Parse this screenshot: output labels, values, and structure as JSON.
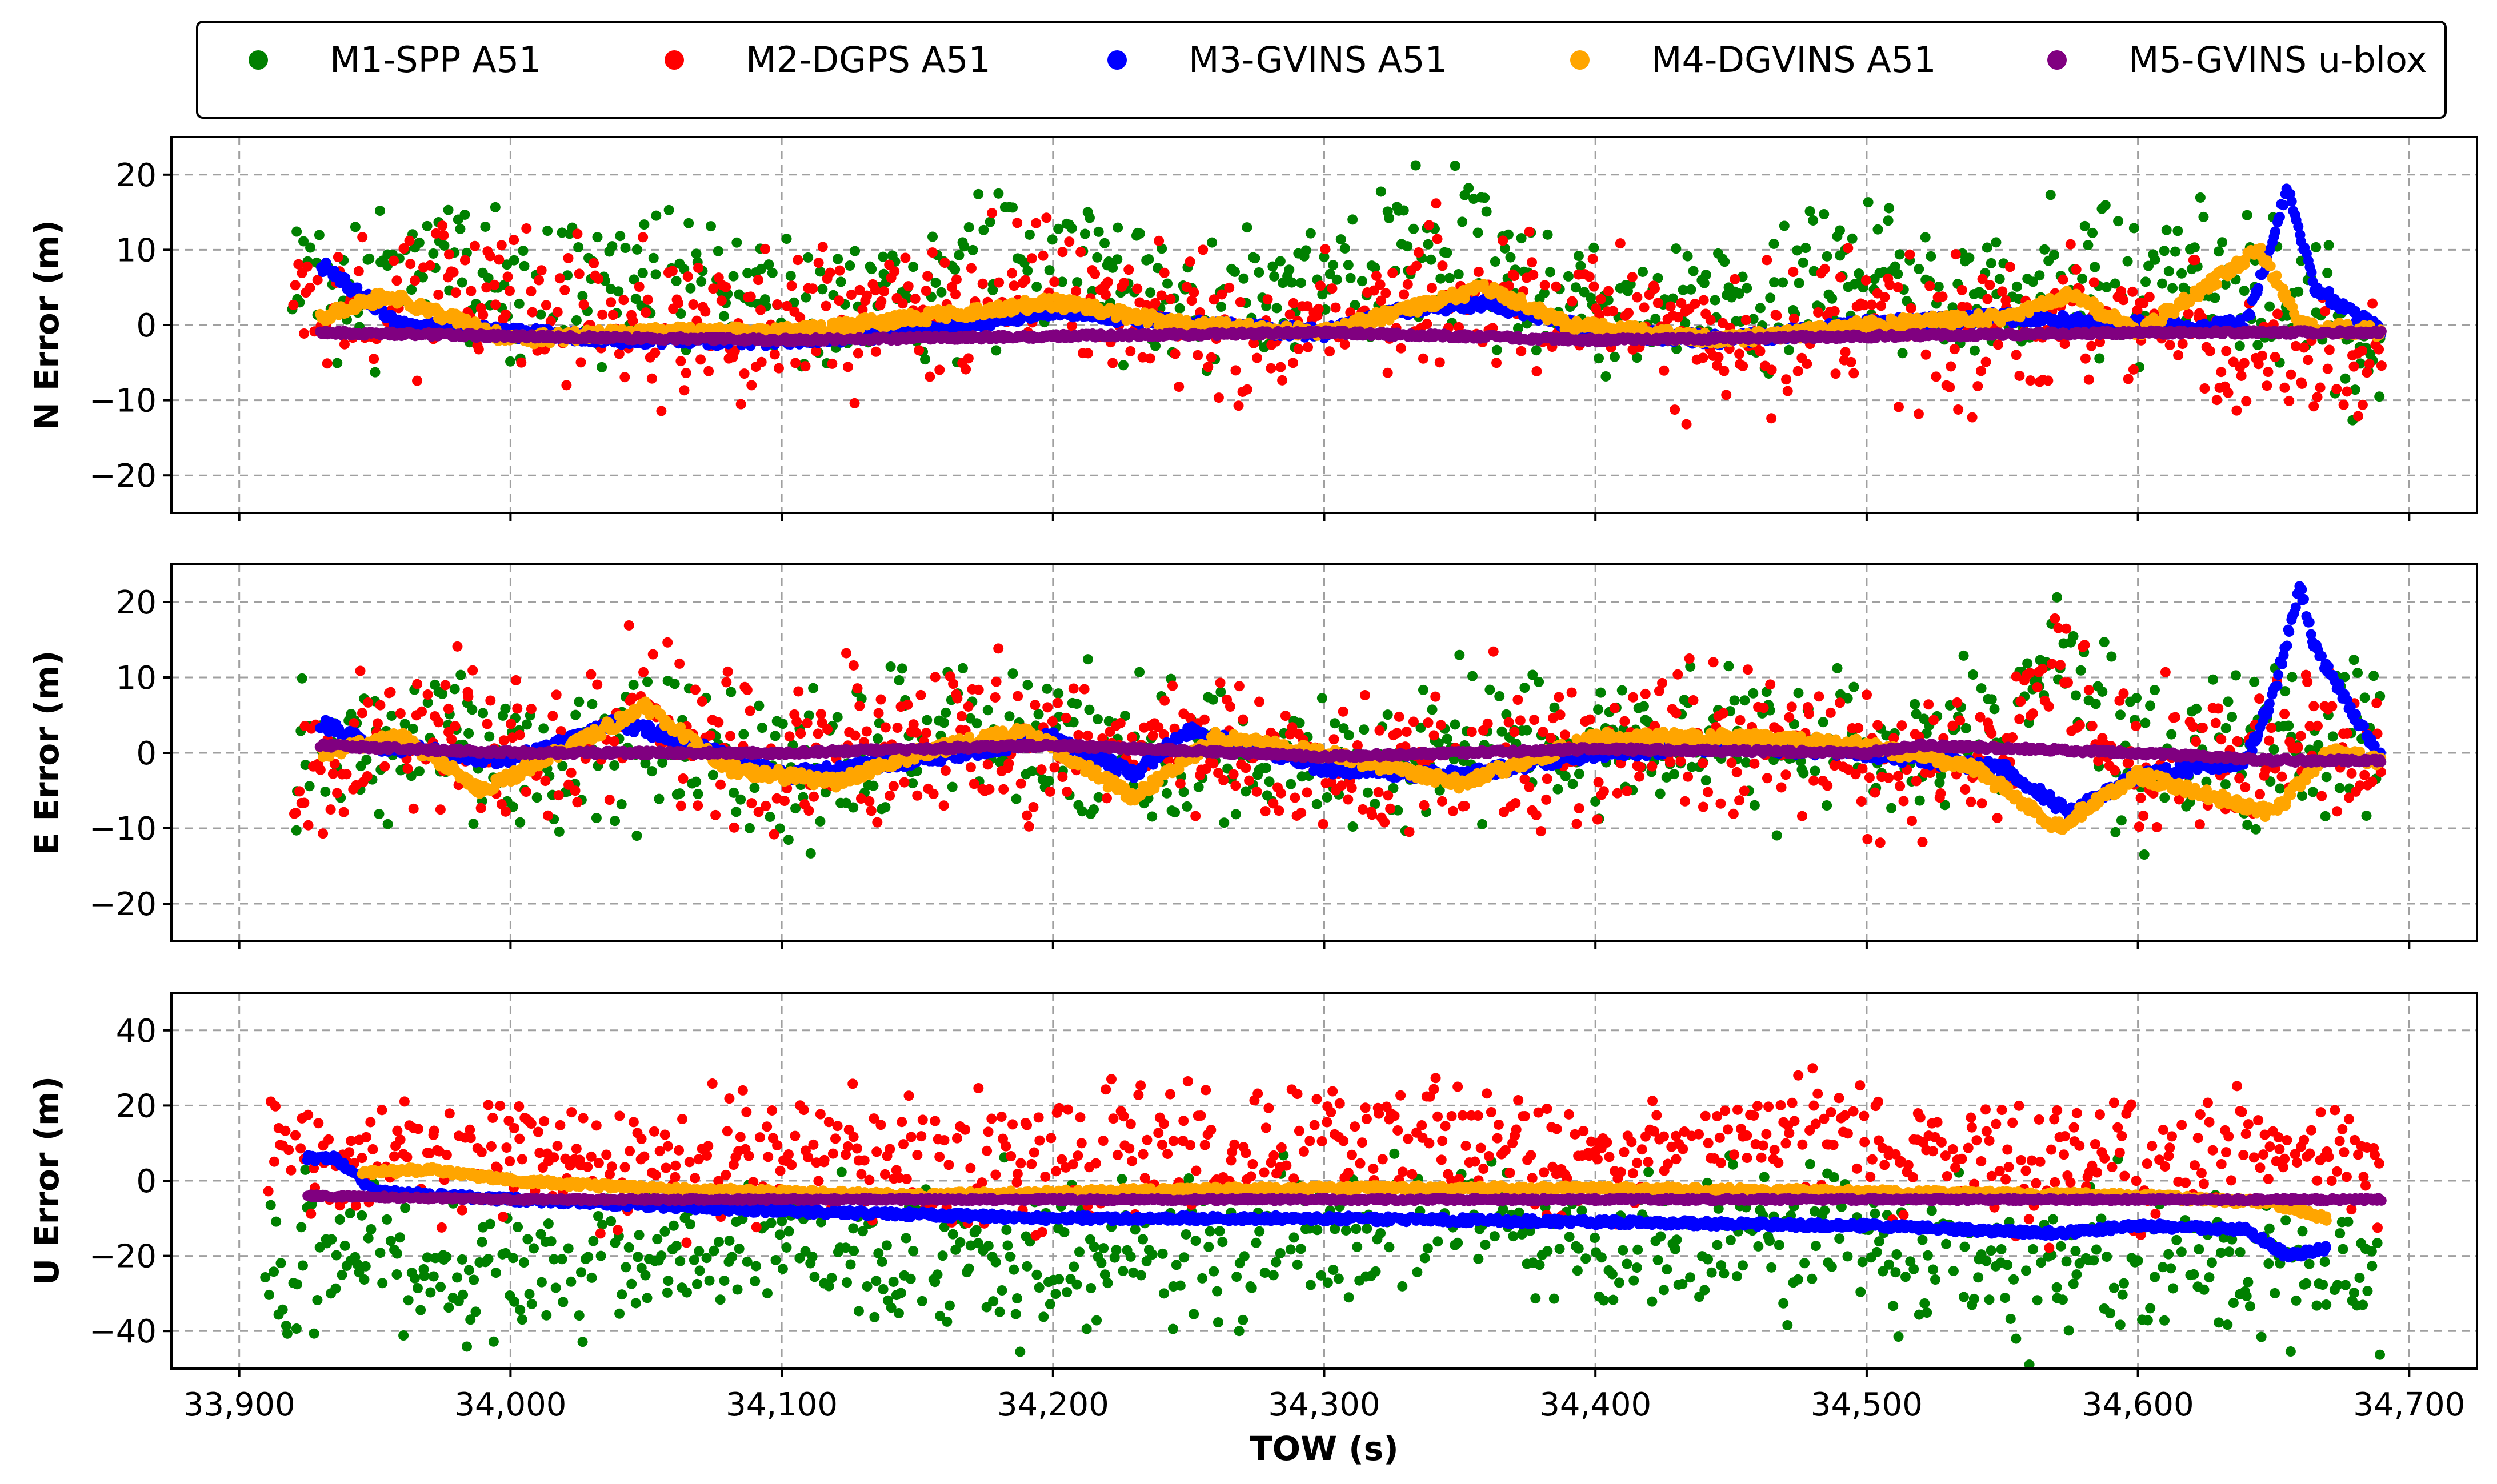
{
  "legend": [
    {
      "label": "M1-SPP A51",
      "color": "#008000"
    },
    {
      "label": "M2-DGPS A51",
      "color": "#ff0000"
    },
    {
      "label": "M3-GVINS A51",
      "color": "#0000ff"
    },
    {
      "label": "M4-DGVINS A51",
      "color": "#ffa500"
    },
    {
      "label": "M5-GVINS u-blox",
      "color": "#800080"
    }
  ],
  "chart_data": {
    "type": "scatter",
    "xlabel": "TOW (s)",
    "x_ticks": [
      33900,
      34000,
      34100,
      34200,
      34300,
      34400,
      34500,
      34600,
      34700
    ],
    "x_tick_labels": [
      "33,900",
      "34,000",
      "34,100",
      "34,200",
      "34,300",
      "34,400",
      "34,500",
      "34,600",
      "34,700"
    ],
    "xlim": [
      33875,
      34725
    ],
    "subplots": [
      {
        "ylabel": "N Error (m)",
        "ylim": [
          -25,
          25
        ],
        "y_ticks": [
          20,
          10,
          0,
          -10,
          -20
        ],
        "y_tick_labels": [
          "20",
          "10",
          "0",
          "−10",
          "−20"
        ],
        "series": [
          {
            "name": "M1-SPP A51",
            "spread": 8,
            "x": [
              33920,
              33945,
              33975,
              34010,
              34050,
              34100,
              34150,
              34200,
              34250,
              34300,
              34350,
              34400,
              34450,
              34500,
              34550,
              34600,
              34650,
              34690
            ],
            "y": [
              10,
              4,
              8,
              6,
              5,
              3,
              5,
              10,
              2,
              4,
              11,
              2,
              3,
              6,
              4,
              6,
              4,
              -4
            ]
          },
          {
            "name": "M2-DGPS A51",
            "spread": 8,
            "x": [
              33920,
              33945,
              33975,
              34010,
              34050,
              34100,
              34150,
              34200,
              34250,
              34300,
              34350,
              34400,
              34450,
              34500,
              34550,
              34600,
              34650,
              34690
            ],
            "y": [
              6,
              2,
              6,
              4,
              1,
              -1,
              2,
              5,
              -1,
              0,
              5,
              0,
              -3,
              1,
              -1,
              0,
              -4,
              -4
            ]
          },
          {
            "name": "M3-GVINS A51",
            "spread": 0.8,
            "x": [
              33930,
              33960,
              34000,
              34050,
              34100,
              34150,
              34200,
              34250,
              34300,
              34330,
              34360,
              34400,
              34450,
              34500,
              34550,
              34600,
              34640,
              34655,
              34665,
              34690
            ],
            "y": [
              8,
              0,
              -1,
              -2,
              -2,
              -1,
              2,
              0,
              -1,
              2,
              3,
              -1,
              -2,
              0,
              1,
              0,
              0,
              18,
              5,
              -1
            ]
          },
          {
            "name": "M4-DGVINS A51",
            "spread": 0.8,
            "x": [
              33930,
              33955,
              34000,
              34050,
              34100,
              34150,
              34200,
              34250,
              34300,
              34330,
              34360,
              34390,
              34450,
              34500,
              34550,
              34575,
              34600,
              34645,
              34660,
              34690
            ],
            "y": [
              1,
              4,
              -2,
              -1,
              -1,
              1,
              3,
              0,
              -1,
              2,
              5,
              0,
              -2,
              0,
              1,
              4,
              -1,
              10,
              0,
              -1
            ]
          },
          {
            "name": "M5-GVINS u-blox",
            "spread": 0.3,
            "x": [
              33930,
              34000,
              34100,
              34200,
              34300,
              34400,
              34500,
              34600,
              34690
            ],
            "y": [
              -1,
              -1.5,
              -2,
              -1.5,
              -1,
              -2,
              -1.5,
              -1,
              -1
            ]
          }
        ]
      },
      {
        "ylabel": "E Error (m)",
        "ylim": [
          -25,
          25
        ],
        "y_ticks": [
          20,
          10,
          0,
          -10,
          -20
        ],
        "y_tick_labels": [
          "20",
          "10",
          "0",
          "−10",
          "−20"
        ],
        "series": [
          {
            "name": "M1-SPP A51",
            "spread": 8,
            "x": [
              33920,
              33950,
              33980,
              34010,
              34050,
              34100,
              34150,
              34200,
              34250,
              34300,
              34350,
              34400,
              34450,
              34500,
              34550,
              34570,
              34600,
              34650,
              34690
            ],
            "y": [
              -2,
              1,
              4,
              -3,
              3,
              -3,
              3,
              1,
              0,
              -2,
              1,
              0,
              2,
              0,
              2,
              15,
              -2,
              1,
              0
            ]
          },
          {
            "name": "M2-DGPS A51",
            "spread": 8,
            "x": [
              33920,
              33950,
              33980,
              34010,
              34050,
              34100,
              34150,
              34200,
              34250,
              34300,
              34350,
              34400,
              34450,
              34500,
              34550,
              34570,
              34600,
              34650,
              34690
            ],
            "y": [
              -3,
              0,
              3,
              -2,
              4,
              -2,
              2,
              1,
              2,
              -3,
              0,
              1,
              2,
              -1,
              1,
              12,
              -2,
              0,
              0
            ]
          },
          {
            "name": "M3-GVINS A51",
            "spread": 0.8,
            "x": [
              33930,
              33950,
              34000,
              34040,
              34060,
              34100,
              34150,
              34200,
              34230,
              34250,
              34300,
              34350,
              34400,
              34450,
              34500,
              34550,
              34575,
              34600,
              34640,
              34650,
              34660,
              34665,
              34690
            ],
            "y": [
              4,
              1,
              -1,
              4,
              2,
              -3,
              -1,
              2,
              -3,
              3,
              -2,
              -3,
              0,
              1,
              0,
              -2,
              -8,
              -3,
              -1,
              8,
              22,
              14,
              -1
            ]
          },
          {
            "name": "M4-DGVINS A51",
            "spread": 0.8,
            "x": [
              33930,
              33960,
              33990,
              34050,
              34080,
              34120,
              34150,
              34190,
              34230,
              34260,
              34300,
              34350,
              34400,
              34450,
              34500,
              34540,
              34570,
              34600,
              34650,
              34670,
              34690
            ],
            "y": [
              0,
              2,
              -5,
              6,
              -2,
              -4,
              0,
              3,
              -6,
              2,
              0,
              -4,
              2,
              2,
              1,
              -2,
              -10,
              -3,
              -8,
              0,
              -1
            ]
          },
          {
            "name": "M5-GVINS u-blox",
            "spread": 0.3,
            "x": [
              33930,
              34000,
              34100,
              34200,
              34300,
              34400,
              34500,
              34520,
              34600,
              34650,
              34690
            ],
            "y": [
              1,
              0,
              0,
              1,
              -0.5,
              0.5,
              0,
              1,
              0,
              -1,
              -1
            ]
          }
        ]
      },
      {
        "ylabel": "U Error (m)",
        "ylim": [
          -50,
          50
        ],
        "y_ticks": [
          40,
          20,
          0,
          -20,
          -40
        ],
        "y_tick_labels": [
          "40",
          "20",
          "0",
          "−20",
          "−40"
        ],
        "series": [
          {
            "name": "M1-SPP A51",
            "spread": 16,
            "x": [
              33910,
              33950,
              34000,
              34050,
              34100,
              34150,
              34200,
              34250,
              34300,
              34350,
              34400,
              34450,
              34500,
              34550,
              34600,
              34650,
              34690
            ],
            "y": [
              -20,
              -18,
              -25,
              -20,
              -15,
              -20,
              -22,
              -18,
              -15,
              -10,
              -15,
              -12,
              -18,
              -22,
              -20,
              -25,
              -25
            ]
          },
          {
            "name": "M2-DGPS A51",
            "spread": 14,
            "x": [
              33910,
              33950,
              34000,
              34050,
              34100,
              34150,
              34200,
              34250,
              34300,
              34350,
              34400,
              34450,
              34500,
              34550,
              34600,
              34650,
              34690
            ],
            "y": [
              5,
              8,
              8,
              5,
              10,
              5,
              6,
              8,
              10,
              10,
              6,
              10,
              10,
              5,
              6,
              10,
              5
            ]
          },
          {
            "name": "M3-GVINS A51",
            "spread": 0.8,
            "x": [
              33925,
              33935,
              33950,
              34000,
              34100,
              34200,
              34300,
              34400,
              34500,
              34570,
              34600,
              34640,
              34655,
              34670
            ],
            "y": [
              6,
              6,
              -3,
              -5,
              -8,
              -10,
              -10,
              -11,
              -12,
              -14,
              -12,
              -13,
              -20,
              -18
            ]
          },
          {
            "name": "M4-DGVINS A51",
            "spread": 0.8,
            "x": [
              33945,
              33970,
              34000,
              34050,
              34100,
              34150,
              34200,
              34300,
              34400,
              34500,
              34600,
              34650,
              34670
            ],
            "y": [
              2,
              3,
              0,
              -2,
              -3,
              -4,
              -3,
              -2,
              -2,
              -3,
              -4,
              -6,
              -10
            ]
          },
          {
            "name": "M5-GVINS u-blox",
            "spread": 0.4,
            "x": [
              33925,
              34000,
              34100,
              34200,
              34300,
              34400,
              34500,
              34600,
              34690
            ],
            "y": [
              -4,
              -5,
              -5,
              -5,
              -5,
              -5,
              -5,
              -5,
              -5
            ]
          }
        ]
      }
    ]
  }
}
